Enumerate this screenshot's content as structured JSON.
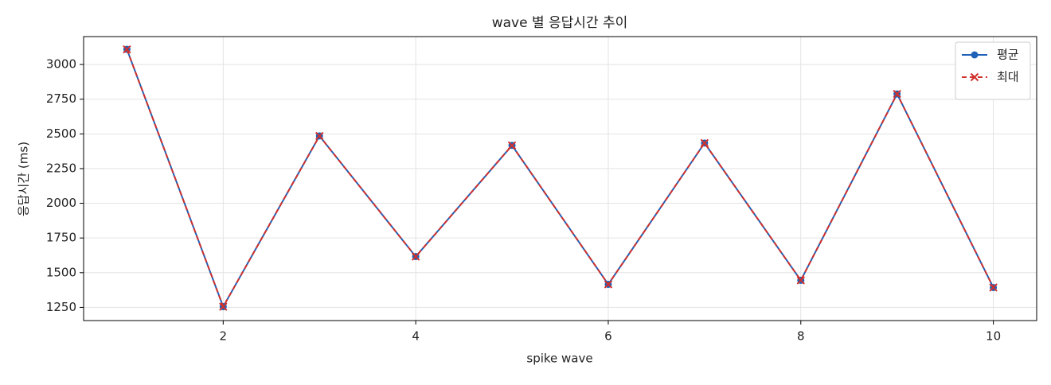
{
  "chart_data": {
    "type": "line",
    "title": "wave 별 응답시간 추이",
    "x_label": "spike wave",
    "y_label": "응답시간 (ms)",
    "x": [
      1,
      2,
      3,
      4,
      5,
      6,
      7,
      8,
      9,
      10
    ],
    "series": [
      {
        "name": "평균",
        "color": "#1f62b8",
        "marker": "o",
        "dash": false,
        "values": [
          3109,
          1255,
          2485,
          1616,
          2417,
          1416,
          2434,
          1445,
          2788,
          1393
        ]
      },
      {
        "name": "최대",
        "color": "#d0312d",
        "marker": "x",
        "dash": true,
        "values": [
          3109,
          1255,
          2485,
          1616,
          2417,
          1416,
          2434,
          1445,
          2788,
          1393
        ]
      }
    ],
    "xlim": [
      0.55,
      10.45
    ],
    "ylim": [
      1155,
      3201
    ],
    "xticks": [
      2,
      4,
      6,
      8,
      10
    ],
    "yticks": [
      1250,
      1500,
      1750,
      2000,
      2250,
      2500,
      2750,
      3000
    ],
    "grid": true,
    "legend": "upper right"
  }
}
